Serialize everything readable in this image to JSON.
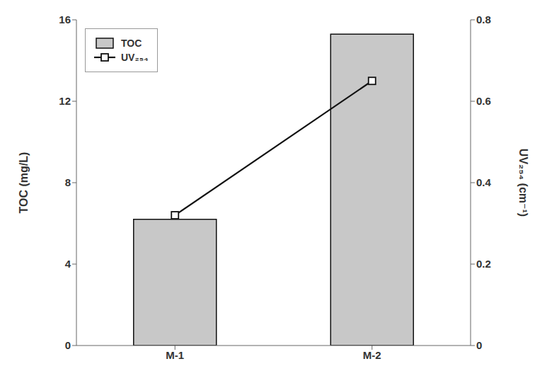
{
  "chart_data": {
    "type": "bar",
    "categories": [
      "M-1",
      "M-2"
    ],
    "series": [
      {
        "name": "TOC",
        "type": "bar",
        "color": "#c8c8c8",
        "values": [
          6.2,
          15.3
        ]
      },
      {
        "name": "UV₂₅₄",
        "type": "line",
        "color": "#111111",
        "marker": "square",
        "axis": "y2",
        "values": [
          0.32,
          0.65
        ]
      }
    ],
    "ylabel": "TOC (mg/L)",
    "y2label": "UV₂₅₄ (cm⁻¹)",
    "ylim": [
      0,
      16
    ],
    "yticks": [
      0,
      4,
      8,
      12,
      16
    ],
    "y2lim": [
      0,
      0.8
    ],
    "y2ticks": [
      0,
      0.2,
      0.4,
      0.6,
      0.8
    ],
    "legend": "upper left",
    "grid": false
  }
}
